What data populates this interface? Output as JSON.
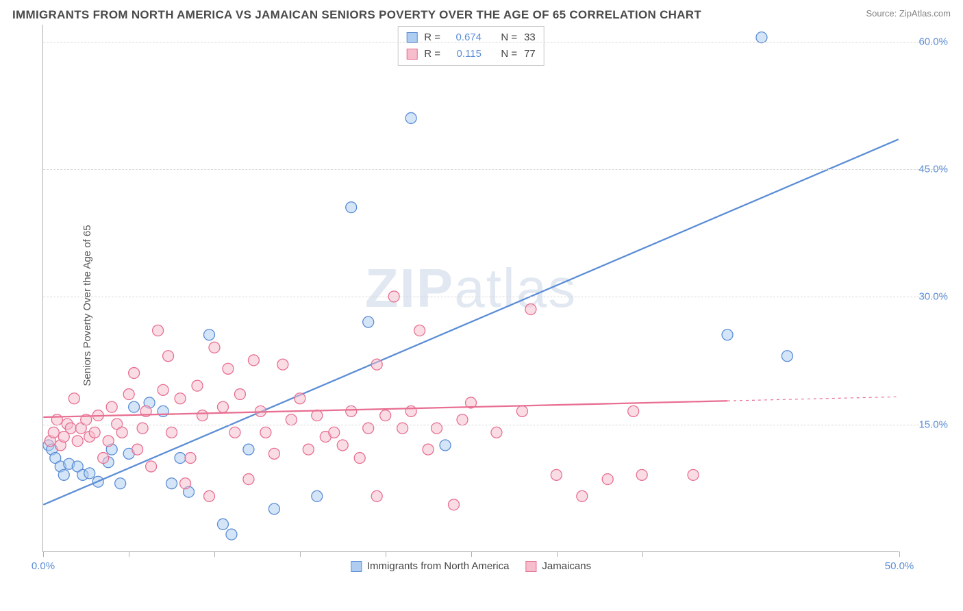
{
  "header": {
    "title": "IMMIGRANTS FROM NORTH AMERICA VS JAMAICAN SENIORS POVERTY OVER THE AGE OF 65 CORRELATION CHART",
    "source_prefix": "Source: ",
    "source_link": "ZipAtlas.com"
  },
  "watermark": {
    "part1": "ZIP",
    "part2": "atlas"
  },
  "chart": {
    "type": "scatter",
    "background_color": "#ffffff",
    "grid_color": "#d8d8d8",
    "axis_color": "#b0b0b0",
    "tick_label_color": "#5b8dd6",
    "ylabel": "Seniors Poverty Over the Age of 65",
    "ylabel_color": "#555555",
    "xlim": [
      0,
      50
    ],
    "ylim": [
      0,
      62
    ],
    "x_ticks": [
      0,
      5,
      10,
      15,
      20,
      25,
      30,
      35,
      50
    ],
    "x_tick_labels": {
      "0": "0.0%",
      "50": "50.0%"
    },
    "y_gridlines": [
      15,
      30,
      45,
      60
    ],
    "y_tick_labels": {
      "15": "15.0%",
      "30": "30.0%",
      "45": "45.0%",
      "60": "60.0%"
    },
    "marker_radius": 8,
    "marker_stroke_width": 1.3,
    "marker_fill_opacity": 0.28,
    "trend_line_width": 2.3,
    "series": [
      {
        "key": "na",
        "label": "Immigrants from North America",
        "color": "#5b8dd6",
        "fill": "#aecdf0",
        "R": "0.674",
        "N": "33",
        "trend": {
          "x1": 0,
          "y1": 5.5,
          "x2": 50,
          "y2": 48.5,
          "dashed_from_x": null
        },
        "points": [
          [
            0.3,
            12.5
          ],
          [
            0.5,
            12.0
          ],
          [
            0.7,
            11.0
          ],
          [
            1.0,
            10.0
          ],
          [
            1.2,
            9.0
          ],
          [
            1.5,
            10.3
          ],
          [
            2.0,
            10.0
          ],
          [
            2.3,
            9.0
          ],
          [
            2.7,
            9.2
          ],
          [
            3.2,
            8.2
          ],
          [
            3.8,
            10.5
          ],
          [
            4.0,
            12.0
          ],
          [
            4.5,
            8.0
          ],
          [
            5.0,
            11.5
          ],
          [
            5.3,
            17.0
          ],
          [
            6.2,
            17.5
          ],
          [
            7.0,
            16.5
          ],
          [
            7.5,
            8.0
          ],
          [
            8.0,
            11.0
          ],
          [
            8.5,
            7.0
          ],
          [
            9.7,
            25.5
          ],
          [
            10.5,
            3.2
          ],
          [
            12.0,
            12.0
          ],
          [
            11.0,
            2.0
          ],
          [
            13.5,
            5.0
          ],
          [
            16.0,
            6.5
          ],
          [
            18.0,
            40.5
          ],
          [
            19.0,
            27.0
          ],
          [
            21.5,
            51.0
          ],
          [
            23.5,
            12.5
          ],
          [
            40.0,
            25.5
          ],
          [
            43.5,
            23.0
          ],
          [
            42.0,
            60.5
          ]
        ]
      },
      {
        "key": "jam",
        "label": "Jamaicans",
        "color": "#e86f92",
        "fill": "#f6bdcc",
        "R": "0.115",
        "N": "77",
        "trend": {
          "x1": 0,
          "y1": 15.8,
          "x2": 50,
          "y2": 18.2,
          "dashed_from_x": 40
        },
        "points": [
          [
            0.4,
            13.0
          ],
          [
            0.6,
            14.0
          ],
          [
            0.8,
            15.5
          ],
          [
            1.0,
            12.5
          ],
          [
            1.2,
            13.5
          ],
          [
            1.4,
            15.0
          ],
          [
            1.6,
            14.5
          ],
          [
            1.8,
            18.0
          ],
          [
            2.0,
            13.0
          ],
          [
            2.2,
            14.5
          ],
          [
            2.5,
            15.5
          ],
          [
            2.7,
            13.5
          ],
          [
            3.0,
            14.0
          ],
          [
            3.2,
            16.0
          ],
          [
            3.5,
            11.0
          ],
          [
            3.8,
            13.0
          ],
          [
            4.0,
            17.0
          ],
          [
            4.3,
            15.0
          ],
          [
            4.6,
            14.0
          ],
          [
            5.0,
            18.5
          ],
          [
            5.3,
            21.0
          ],
          [
            5.5,
            12.0
          ],
          [
            5.8,
            14.5
          ],
          [
            6.0,
            16.5
          ],
          [
            6.3,
            10.0
          ],
          [
            6.7,
            26.0
          ],
          [
            7.0,
            19.0
          ],
          [
            7.3,
            23.0
          ],
          [
            7.5,
            14.0
          ],
          [
            8.0,
            18.0
          ],
          [
            8.3,
            8.0
          ],
          [
            8.6,
            11.0
          ],
          [
            9.0,
            19.5
          ],
          [
            9.3,
            16.0
          ],
          [
            9.7,
            6.5
          ],
          [
            10.0,
            24.0
          ],
          [
            10.5,
            17.0
          ],
          [
            10.8,
            21.5
          ],
          [
            11.2,
            14.0
          ],
          [
            11.5,
            18.5
          ],
          [
            12.0,
            8.5
          ],
          [
            12.3,
            22.5
          ],
          [
            12.7,
            16.5
          ],
          [
            13.0,
            14.0
          ],
          [
            13.5,
            11.5
          ],
          [
            14.0,
            22.0
          ],
          [
            14.5,
            15.5
          ],
          [
            15.0,
            18.0
          ],
          [
            15.5,
            12.0
          ],
          [
            16.0,
            16.0
          ],
          [
            16.5,
            13.5
          ],
          [
            17.0,
            14.0
          ],
          [
            17.5,
            12.5
          ],
          [
            18.0,
            16.5
          ],
          [
            18.5,
            11.0
          ],
          [
            19.0,
            14.5
          ],
          [
            19.5,
            22.0
          ],
          [
            20.0,
            16.0
          ],
          [
            20.5,
            30.0
          ],
          [
            21.0,
            14.5
          ],
          [
            21.5,
            16.5
          ],
          [
            22.0,
            26.0
          ],
          [
            22.5,
            12.0
          ],
          [
            23.0,
            14.5
          ],
          [
            24.0,
            5.5
          ],
          [
            25.0,
            17.5
          ],
          [
            26.5,
            14.0
          ],
          [
            28.0,
            16.5
          ],
          [
            28.5,
            28.5
          ],
          [
            30.0,
            9.0
          ],
          [
            31.5,
            6.5
          ],
          [
            33.0,
            8.5
          ],
          [
            35.0,
            9.0
          ],
          [
            34.5,
            16.5
          ],
          [
            38.0,
            9.0
          ],
          [
            24.5,
            15.5
          ],
          [
            19.5,
            6.5
          ]
        ]
      }
    ],
    "stats_box": {
      "R_label": "R =",
      "N_label": "N ="
    },
    "legend_position": "top-center"
  }
}
